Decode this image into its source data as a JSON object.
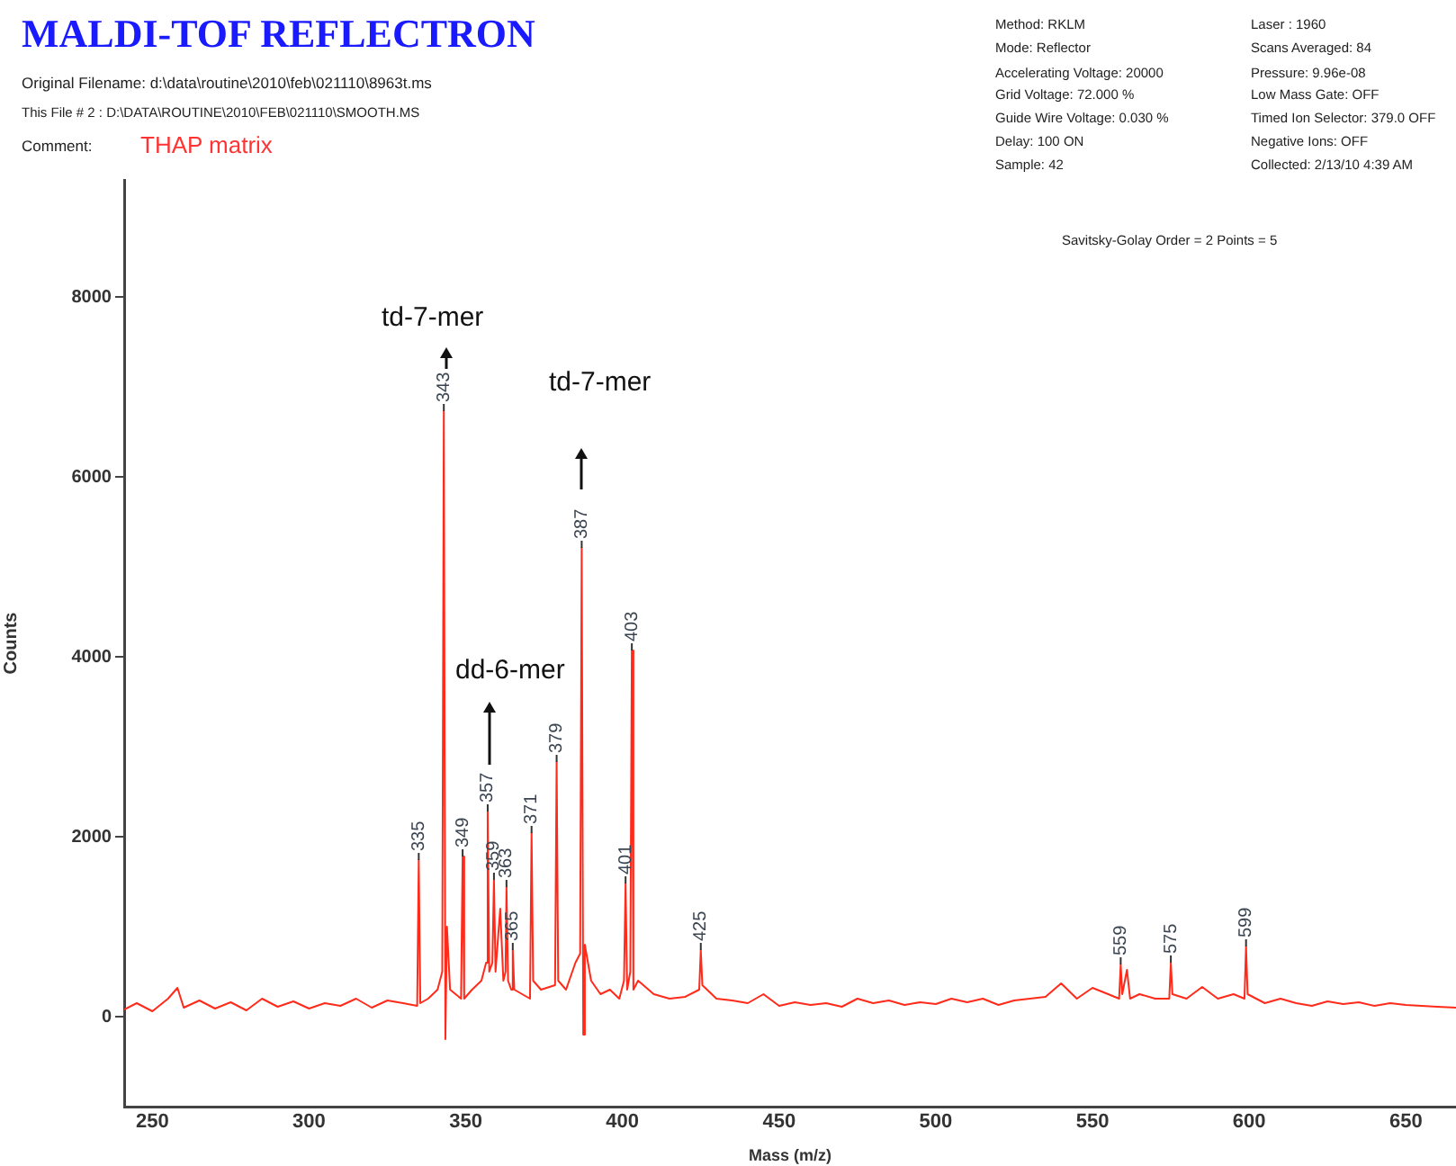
{
  "chart_data": {
    "type": "line",
    "title": "MALDI-TOF REFLECTRON",
    "xlabel": "Mass (m/z)",
    "ylabel": "Counts",
    "annotations": [
      "Original Filename: d:\\data\\routine\\2010\\feb\\021110\\8963t.ms",
      "This File # 2 : D:\\DATA\\ROUTINE\\2010\\FEB\\021110\\SMOOTH.MS",
      "Comment:",
      "THAP matrix",
      "Method: RKLM",
      "Mode: Reflector",
      "Accelerating Voltage: 20000",
      "Grid Voltage: 72.000 %",
      "Guide Wire Voltage: 0.030 %",
      "Delay: 100 ON",
      "Sample: 42",
      "Laser : 1960",
      "Scans Averaged: 84",
      "Pressure: 9.96e-08",
      "Low Mass Gate: OFF",
      "Timed Ion Selector: 379.0 OFF",
      "Negative Ions: OFF",
      "Collected: 2/13/10 4:39 AM",
      "Savitsky-Golay Order = 2 Points = 5",
      {
        "text": "335",
        "x": 335,
        "y": 1740
      },
      {
        "text": "343",
        "x": 343,
        "y": 6730
      },
      {
        "text": "349",
        "x": 349,
        "y": 1780
      },
      {
        "text": "357",
        "x": 357,
        "y": 2280
      },
      {
        "text": "359",
        "x": 359,
        "y": 1520
      },
      {
        "text": "363",
        "x": 363,
        "y": 1440
      },
      {
        "text": "365",
        "x": 365,
        "y": 740
      },
      {
        "text": "371",
        "x": 371,
        "y": 2040
      },
      {
        "text": "379",
        "x": 379,
        "y": 2830
      },
      {
        "text": "387",
        "x": 387,
        "y": 5210
      },
      {
        "text": "401",
        "x": 401,
        "y": 1480
      },
      {
        "text": "403",
        "x": 403,
        "y": 4070
      },
      {
        "text": "425",
        "x": 425,
        "y": 740
      },
      {
        "text": "559",
        "x": 559,
        "y": 580
      },
      {
        "text": "575",
        "x": 575,
        "y": 600
      },
      {
        "text": "599",
        "x": 599,
        "y": 780
      },
      "td-7-mer",
      "td-7-mer",
      "dd-6-mer"
    ],
    "x": [
      241,
      245,
      250,
      255,
      258,
      260,
      265,
      270,
      275,
      280,
      285,
      290,
      295,
      300,
      305,
      310,
      315,
      320,
      325,
      330,
      334.5,
      335,
      335.5,
      338,
      341,
      342.5,
      343,
      343.5,
      344,
      345,
      348.5,
      349,
      349.5,
      352,
      355,
      356.5,
      357,
      357.5,
      358.5,
      359,
      359.5,
      361,
      362,
      362.7,
      363,
      363.5,
      364.5,
      365,
      365.5,
      368,
      370.5,
      371,
      371.5,
      374,
      378.5,
      379,
      379.5,
      382,
      385,
      386.5,
      387,
      387.5,
      388,
      390,
      393,
      396,
      399,
      400.5,
      401,
      401.5,
      402.5,
      403,
      403.5,
      405,
      410,
      415,
      420,
      424.5,
      425,
      425.5,
      430,
      435,
      440,
      445,
      450,
      455,
      460,
      465,
      470,
      475,
      480,
      485,
      490,
      495,
      500,
      505,
      510,
      515,
      520,
      525,
      530,
      535,
      540,
      545,
      550,
      555,
      558.5,
      559,
      559.5,
      561,
      562,
      565,
      570,
      574.5,
      575,
      575.5,
      580,
      585,
      590,
      595,
      598.5,
      599,
      599.5,
      605,
      610,
      615,
      620,
      625,
      630,
      635,
      640,
      645,
      650,
      655,
      660,
      666
    ],
    "series": [
      {
        "color": "#ff2a1a",
        "values": [
          80,
          150,
          60,
          200,
          320,
          100,
          180,
          90,
          160,
          70,
          200,
          110,
          170,
          90,
          150,
          120,
          200,
          100,
          180,
          150,
          120,
          1740,
          150,
          200,
          300,
          500,
          6730,
          -250,
          1000,
          300,
          200,
          1780,
          200,
          300,
          400,
          600,
          2280,
          500,
          600,
          1520,
          500,
          1200,
          400,
          500,
          1440,
          400,
          300,
          740,
          300,
          250,
          200,
          2040,
          400,
          300,
          350,
          2830,
          400,
          300,
          600,
          700,
          5210,
          -200,
          800,
          400,
          250,
          300,
          200,
          400,
          1480,
          300,
          500,
          4070,
          300,
          400,
          250,
          200,
          220,
          300,
          740,
          350,
          200,
          180,
          150,
          250,
          120,
          160,
          130,
          150,
          110,
          200,
          150,
          180,
          130,
          160,
          140,
          200,
          160,
          200,
          130,
          180,
          200,
          220,
          370,
          200,
          320,
          250,
          200,
          580,
          250,
          520,
          200,
          250,
          200,
          200,
          600,
          250,
          200,
          330,
          200,
          250,
          200,
          780,
          250,
          150,
          200,
          150,
          120,
          170,
          140,
          160,
          120,
          150,
          130,
          120,
          110,
          100
        ]
      }
    ],
    "xlim": [
      241,
      666
    ],
    "xticks": [
      250,
      300,
      350,
      400,
      450,
      500,
      550,
      600,
      650
    ],
    "ylim": [
      -1000,
      9300
    ],
    "yticks": [
      0,
      2000,
      4000,
      6000,
      8000
    ],
    "grid": false,
    "legend": false,
    "marker": "none",
    "line_style": "solid"
  }
}
